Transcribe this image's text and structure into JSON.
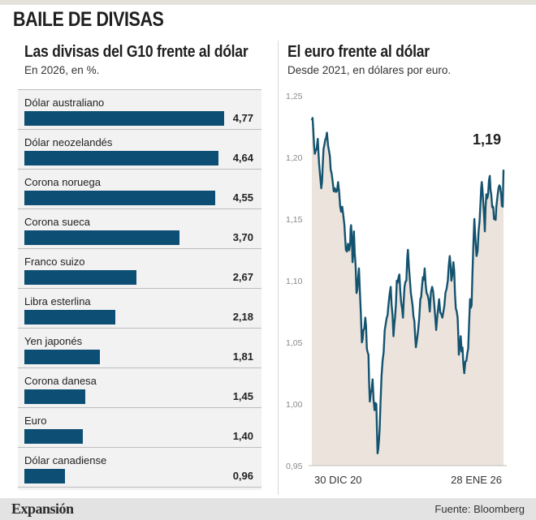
{
  "header": {
    "title": "BAILE DE DIVISAS"
  },
  "left_panel": {
    "title": "Las divisas del G10 frente al dólar",
    "subtitle": "En 2026, en %."
  },
  "right_panel": {
    "title": "El euro frente al dólar",
    "subtitle": "Desde 2021, en dólares por euro.",
    "end_value_label": "1,19"
  },
  "footer": {
    "logo": "Expansión",
    "source": "Fuente: Bloomberg"
  },
  "colors": {
    "bar": "#0d4f74",
    "line": "#14536f",
    "area": "#ece4dc",
    "panel_bg": "#f2f2f2"
  },
  "chart_data": [
    {
      "type": "bar",
      "orientation": "horizontal",
      "categories": [
        "Dólar australiano",
        "Dólar neozelandés",
        "Corona noruega",
        "Corona sueca",
        "Franco suizo",
        "Libra esterlina",
        "Yen japonés",
        "Corona danesa",
        "Euro",
        "Dólar canadiense"
      ],
      "values": [
        4.77,
        4.64,
        4.55,
        3.7,
        2.67,
        2.18,
        1.81,
        1.45,
        1.4,
        0.96
      ],
      "value_labels": [
        "4,77",
        "4,64",
        "4,55",
        "3,70",
        "2,67",
        "2,18",
        "1,81",
        "1,45",
        "1,40",
        "0,96"
      ],
      "title": "Las divisas del G10 frente al dólar",
      "subtitle": "En 2026, en %.",
      "xlim": [
        0,
        4.77
      ]
    },
    {
      "type": "area",
      "title": "El euro frente al dólar",
      "subtitle": "Desde 2021, en dólares por euro.",
      "ylim": [
        0.95,
        1.25
      ],
      "y_ticks": [
        1.25,
        1.2,
        1.15,
        1.1,
        1.05,
        1.0,
        0.95
      ],
      "y_tick_labels": [
        "1,25",
        "1,20",
        "1,15",
        "1,10",
        "1,05",
        "1,00",
        "0,95"
      ],
      "x_tick_labels": [
        "30 DIC 20",
        "28 ENE 26"
      ],
      "x_range": [
        "2020-12-30",
        "2026-01-28"
      ],
      "series": [
        {
          "x": [
            "2020-12-30",
            "2021-01-06",
            "2021-01-20",
            "2021-02-03",
            "2021-02-25",
            "2021-03-10",
            "2021-03-31",
            "2021-04-15",
            "2021-04-30",
            "2021-05-25",
            "2021-06-15",
            "2021-06-30",
            "2021-07-20",
            "2021-08-10",
            "2021-08-20",
            "2021-09-10",
            "2021-09-30",
            "2021-10-20",
            "2021-11-10",
            "2021-11-24",
            "2021-12-15",
            "2022-01-05",
            "2022-01-14",
            "2022-01-28",
            "2022-02-10",
            "2022-03-07",
            "2022-03-31",
            "2022-04-28",
            "2022-05-12",
            "2022-05-31",
            "2022-06-15",
            "2022-07-01",
            "2022-07-14",
            "2022-08-10",
            "2022-08-29",
            "2022-09-15",
            "2022-09-27",
            "2022-10-10",
            "2022-10-25",
            "2022-11-15",
            "2022-12-15",
            "2023-01-10",
            "2023-02-01",
            "2023-02-28",
            "2023-03-15",
            "2023-04-01",
            "2023-04-26",
            "2023-05-31",
            "2023-06-15",
            "2023-07-03",
            "2023-07-18",
            "2023-08-15",
            "2023-09-01",
            "2023-09-26",
            "2023-10-03",
            "2023-10-25",
            "2023-11-15",
            "2023-12-01",
            "2023-12-27",
            "2024-01-15",
            "2024-02-14",
            "2024-03-08",
            "2024-04-16",
            "2024-05-15",
            "2024-06-15",
            "2024-07-15",
            "2024-08-07",
            "2024-08-26",
            "2024-09-10",
            "2024-09-30",
            "2024-10-15",
            "2024-11-10",
            "2024-11-22",
            "2024-12-10",
            "2025-01-13",
            "2025-02-03",
            "2025-02-20",
            "2025-03-10",
            "2025-03-25",
            "2025-04-21",
            "2025-05-12",
            "2025-06-01",
            "2025-06-20",
            "2025-07-01",
            "2025-07-15",
            "2025-07-31",
            "2025-08-15",
            "2025-09-01",
            "2025-09-17",
            "2025-10-01",
            "2025-10-20",
            "2025-11-05",
            "2025-11-20",
            "2025-12-10",
            "2026-01-05",
            "2026-01-20",
            "2026-01-28"
          ],
          "y": [
            1.23,
            1.232,
            1.21,
            1.205,
            1.215,
            1.195,
            1.175,
            1.195,
            1.21,
            1.22,
            1.205,
            1.19,
            1.18,
            1.175,
            1.172,
            1.18,
            1.16,
            1.16,
            1.145,
            1.125,
            1.13,
            1.13,
            1.145,
            1.115,
            1.14,
            1.09,
            1.11,
            1.05,
            1.06,
            1.07,
            1.045,
            1.04,
            1.002,
            1.02,
            0.995,
            1.0,
            0.96,
            0.97,
            1.0,
            1.035,
            1.065,
            1.08,
            1.095,
            1.055,
            1.07,
            1.1,
            1.105,
            1.07,
            1.095,
            1.1,
            1.125,
            1.09,
            1.08,
            1.055,
            1.046,
            1.06,
            1.085,
            1.095,
            1.11,
            1.09,
            1.075,
            1.095,
            1.06,
            1.085,
            1.07,
            1.09,
            1.1,
            1.12,
            1.1,
            1.115,
            1.09,
            1.07,
            1.04,
            1.055,
            1.025,
            1.035,
            1.045,
            1.085,
            1.08,
            1.15,
            1.12,
            1.14,
            1.165,
            1.18,
            1.165,
            1.14,
            1.17,
            1.17,
            1.185,
            1.17,
            1.16,
            1.15,
            1.16,
            1.175,
            1.17,
            1.16,
            1.19
          ]
        }
      ]
    }
  ]
}
